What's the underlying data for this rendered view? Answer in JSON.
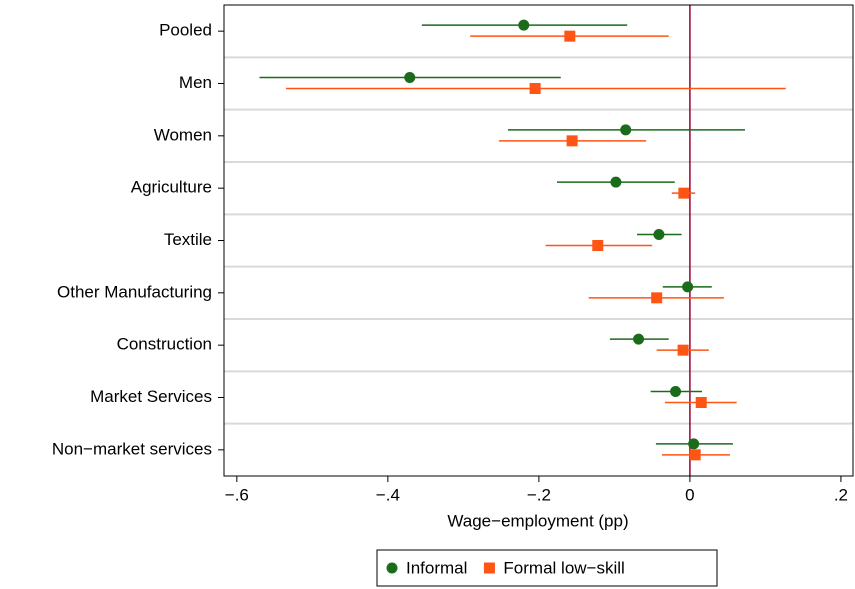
{
  "chart_data": {
    "type": "coefplot",
    "xlabel": "Wage−employment (pp)",
    "categories": [
      "Pooled",
      "Men",
      "Women",
      "Agriculture",
      "Textile",
      "Other Manufacturing",
      "Construction",
      "Market Services",
      "Non−market services"
    ],
    "xlim": [
      -0.617,
      0.216
    ],
    "xticks": [
      {
        "value": -0.6,
        "label": "−.6"
      },
      {
        "value": -0.4,
        "label": "−.4"
      },
      {
        "value": -0.2,
        "label": "−.2"
      },
      0,
      {
        "value": 0.2,
        "label": ".2"
      }
    ],
    "refline": 0,
    "refline_color": "#990033",
    "series": [
      {
        "name": "Informal",
        "color": "#1a6b1a",
        "marker": "circle",
        "values": [
          -0.22,
          -0.371,
          -0.085,
          -0.098,
          -0.041,
          -0.003,
          -0.068,
          -0.019,
          0.005
        ],
        "lower": [
          -0.355,
          -0.57,
          -0.241,
          -0.176,
          -0.07,
          -0.036,
          -0.106,
          -0.052,
          -0.045
        ],
        "upper": [
          -0.083,
          -0.171,
          0.073,
          -0.02,
          -0.011,
          0.029,
          -0.028,
          0.016,
          0.057
        ]
      },
      {
        "name": "Formal low−skill",
        "color": "#ff5514",
        "marker": "square",
        "values": [
          -0.159,
          -0.205,
          -0.156,
          -0.008,
          -0.122,
          -0.044,
          -0.009,
          0.015,
          0.007
        ],
        "lower": [
          -0.291,
          -0.535,
          -0.253,
          -0.024,
          -0.191,
          -0.134,
          -0.044,
          -0.033,
          -0.037
        ],
        "upper": [
          -0.028,
          0.127,
          -0.058,
          0.007,
          -0.05,
          0.045,
          0.025,
          0.062,
          0.053
        ]
      }
    ]
  }
}
